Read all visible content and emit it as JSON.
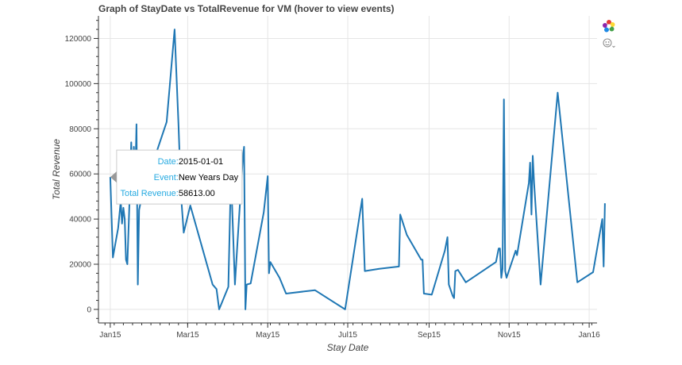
{
  "chart_data": {
    "type": "line",
    "title": "Graph of StayDate vs TotalRevenue for VM (hover to view events)",
    "xlabel": "Stay Date",
    "ylabel": "Total Revenue",
    "x_ticks": [
      {
        "date": "2015-01-01",
        "label": "Jan15"
      },
      {
        "date": "2015-03-01",
        "label": "Mar15"
      },
      {
        "date": "2015-05-01",
        "label": "May15"
      },
      {
        "date": "2015-07-01",
        "label": "Jul15"
      },
      {
        "date": "2015-09-01",
        "label": "Sep15"
      },
      {
        "date": "2015-11-01",
        "label": "Nov15"
      },
      {
        "date": "2016-01-01",
        "label": "Jan16"
      }
    ],
    "xlim": [
      "2014-12-23",
      "2016-01-07"
    ],
    "ylim": [
      -6000,
      130000
    ],
    "y_ticks": [
      0,
      20000,
      40000,
      60000,
      80000,
      100000,
      120000
    ],
    "series": [
      {
        "color": "#1f77b4",
        "points": [
          [
            "2015-01-01",
            58613
          ],
          [
            "2015-01-03",
            23000
          ],
          [
            "2015-01-07",
            36000
          ],
          [
            "2015-01-09",
            48000
          ],
          [
            "2015-01-10",
            38000
          ],
          [
            "2015-01-11",
            45000
          ],
          [
            "2015-01-12",
            40000
          ],
          [
            "2015-01-13",
            22000
          ],
          [
            "2015-01-14",
            20000
          ],
          [
            "2015-01-16",
            54000
          ],
          [
            "2015-01-17",
            74000
          ],
          [
            "2015-01-18",
            48000
          ],
          [
            "2015-01-19",
            72000
          ],
          [
            "2015-01-20",
            56000
          ],
          [
            "2015-01-21",
            82000
          ],
          [
            "2015-01-22",
            11000
          ],
          [
            "2015-01-23",
            44000
          ],
          [
            "2015-01-25",
            50000
          ],
          [
            "2015-02-13",
            83000
          ],
          [
            "2015-02-19",
            124000
          ],
          [
            "2015-02-22",
            82000
          ],
          [
            "2015-02-24",
            50000
          ],
          [
            "2015-02-26",
            34000
          ],
          [
            "2015-03-03",
            46000
          ],
          [
            "2015-03-20",
            11000
          ],
          [
            "2015-03-23",
            9000
          ],
          [
            "2015-03-25",
            0
          ],
          [
            "2015-04-01",
            10000
          ],
          [
            "2015-04-03",
            60000
          ],
          [
            "2015-04-06",
            11000
          ],
          [
            "2015-04-08",
            30000
          ],
          [
            "2015-04-12",
            67000
          ],
          [
            "2015-04-13",
            72000
          ],
          [
            "2015-04-14",
            0
          ],
          [
            "2015-04-15",
            11000
          ],
          [
            "2015-04-18",
            11500
          ],
          [
            "2015-04-28",
            43000
          ],
          [
            "2015-05-01",
            59000
          ],
          [
            "2015-05-02",
            16000
          ],
          [
            "2015-05-03",
            21000
          ],
          [
            "2015-05-10",
            14000
          ],
          [
            "2015-05-15",
            7000
          ],
          [
            "2015-06-06",
            8500
          ],
          [
            "2015-06-29",
            0
          ],
          [
            "2015-07-12",
            49000
          ],
          [
            "2015-07-14",
            17000
          ],
          [
            "2015-07-25",
            18000
          ],
          [
            "2015-08-09",
            19000
          ],
          [
            "2015-08-10",
            42000
          ],
          [
            "2015-08-15",
            33000
          ],
          [
            "2015-08-26",
            22000
          ],
          [
            "2015-08-27",
            22000
          ],
          [
            "2015-08-28",
            7000
          ],
          [
            "2015-09-03",
            6500
          ],
          [
            "2015-09-13",
            26000
          ],
          [
            "2015-09-15",
            32000
          ],
          [
            "2015-09-16",
            11000
          ],
          [
            "2015-09-19",
            6000
          ],
          [
            "2015-09-20",
            5000
          ],
          [
            "2015-09-21",
            17000
          ],
          [
            "2015-09-23",
            17500
          ],
          [
            "2015-09-29",
            12000
          ],
          [
            "2015-10-22",
            21000
          ],
          [
            "2015-10-24",
            27000
          ],
          [
            "2015-10-25",
            27000
          ],
          [
            "2015-10-26",
            14000
          ],
          [
            "2015-10-27",
            18000
          ],
          [
            "2015-10-28",
            93000
          ],
          [
            "2015-10-29",
            17000
          ],
          [
            "2015-10-30",
            14000
          ],
          [
            "2015-11-06",
            26000
          ],
          [
            "2015-11-07",
            24000
          ],
          [
            "2015-11-16",
            56000
          ],
          [
            "2015-11-17",
            65000
          ],
          [
            "2015-11-18",
            42000
          ],
          [
            "2015-11-19",
            68000
          ],
          [
            "2015-11-20",
            56000
          ],
          [
            "2015-11-25",
            11000
          ],
          [
            "2015-12-08",
            96000
          ],
          [
            "2015-12-23",
            12000
          ],
          [
            "2016-01-04",
            16500
          ],
          [
            "2016-01-11",
            40000
          ],
          [
            "2016-01-12",
            19000
          ],
          [
            "2016-01-13",
            47000
          ]
        ]
      }
    ],
    "grid": true,
    "tooltip": {
      "rows": [
        {
          "key": "Date:",
          "value": "2015-01-01"
        },
        {
          "key": "Event:",
          "value": "New Years Day"
        },
        {
          "key": "Total Revenue:",
          "value": "58613.00"
        }
      ]
    }
  },
  "toolbar": {
    "items": [
      {
        "icon": "bokeh-logo-icon"
      },
      {
        "icon": "hover-tool-icon"
      }
    ]
  }
}
